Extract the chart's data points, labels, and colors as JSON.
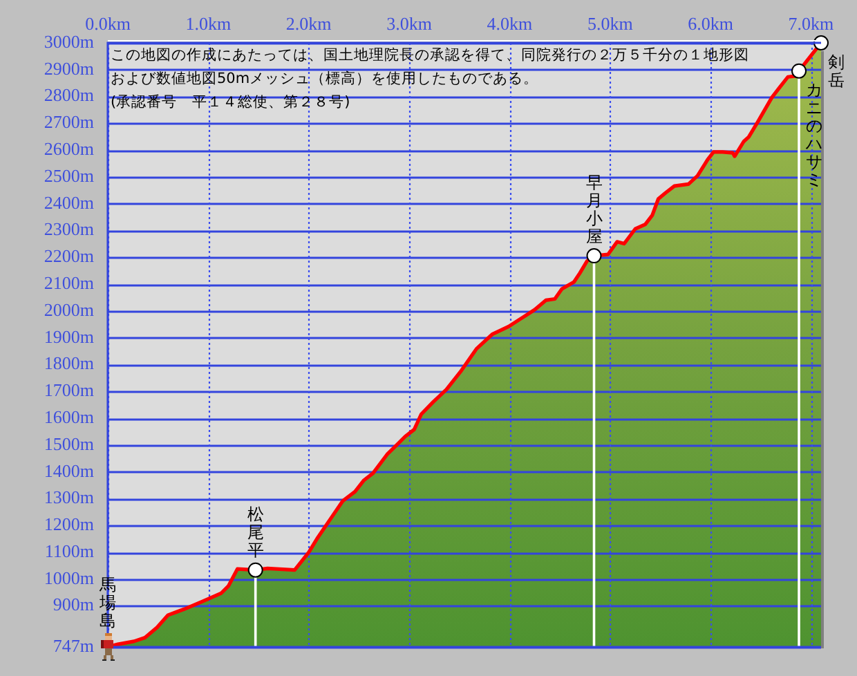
{
  "chart_data": {
    "type": "area",
    "x": [
      0,
      0.1,
      0.26,
      0.37,
      0.49,
      0.6,
      0.76,
      0.95,
      1.13,
      1.2,
      1.29,
      1.47,
      1.59,
      1.86,
      2.0,
      2.09,
      2.23,
      2.34,
      2.46,
      2.55,
      2.64,
      2.78,
      2.87,
      2.96,
      3.05,
      3.12,
      3.24,
      3.37,
      3.51,
      3.67,
      3.83,
      3.99,
      4.11,
      4.25,
      4.36,
      4.45,
      4.52,
      4.64,
      4.7,
      4.77,
      4.84,
      4.98,
      5.07,
      5.14,
      5.25,
      5.35,
      5.42,
      5.48,
      5.55,
      5.64,
      5.78,
      5.87,
      5.97,
      6.03,
      6.12,
      6.22,
      6.24,
      6.33,
      6.38,
      6.47,
      6.61,
      6.68,
      6.77,
      6.84,
      6.88,
      7.1
    ],
    "series": [
      {
        "color": "#76a23f",
        "values": [
          747,
          757,
          768,
          782,
          820,
          866,
          888,
          918,
          948,
          974,
          1038,
          1034,
          1040,
          1034,
          1100,
          1155,
          1232,
          1292,
          1326,
          1369,
          1395,
          1465,
          1498,
          1532,
          1558,
          1615,
          1661,
          1707,
          1773,
          1859,
          1914,
          1942,
          1971,
          2005,
          2040,
          2045,
          2082,
          2108,
          2142,
          2186,
          2206,
          2211,
          2258,
          2251,
          2306,
          2323,
          2357,
          2418,
          2440,
          2466,
          2473,
          2504,
          2564,
          2593,
          2593,
          2590,
          2577,
          2632,
          2649,
          2705,
          2796,
          2830,
          2873,
          2876,
          2895,
          3000
        ]
      }
    ],
    "xlim": [
      0,
      7.1
    ],
    "xticks": [
      {
        "value": 0,
        "label": "0.0km"
      },
      {
        "value": 1,
        "label": "1.0km"
      },
      {
        "value": 2,
        "label": "2.0km"
      },
      {
        "value": 3,
        "label": "3.0km"
      },
      {
        "value": 4,
        "label": "4.0km"
      },
      {
        "value": 5,
        "label": "5.0km"
      },
      {
        "value": 6,
        "label": "6.0km"
      },
      {
        "value": 7,
        "label": "7.0km"
      }
    ],
    "ylim": [
      747,
      3000
    ],
    "yticks": [
      {
        "value": 747,
        "label": "747m"
      },
      {
        "value": 900,
        "label": "900m"
      },
      {
        "value": 1000,
        "label": "1000m"
      },
      {
        "value": 1100,
        "label": "1100m"
      },
      {
        "value": 1200,
        "label": "1200m"
      },
      {
        "value": 1300,
        "label": "1300m"
      },
      {
        "value": 1400,
        "label": "1400m"
      },
      {
        "value": 1500,
        "label": "1500m"
      },
      {
        "value": 1600,
        "label": "1600m"
      },
      {
        "value": 1700,
        "label": "1700m"
      },
      {
        "value": 1800,
        "label": "1800m"
      },
      {
        "value": 1900,
        "label": "1900m"
      },
      {
        "value": 2000,
        "label": "2000m"
      },
      {
        "value": 2100,
        "label": "2100m"
      },
      {
        "value": 2200,
        "label": "2200m"
      },
      {
        "value": 2300,
        "label": "2300m"
      },
      {
        "value": 2400,
        "label": "2400m"
      },
      {
        "value": 2500,
        "label": "2500m"
      },
      {
        "value": 2600,
        "label": "2600m"
      },
      {
        "value": 2700,
        "label": "2700m"
      },
      {
        "value": 2800,
        "label": "2800m"
      },
      {
        "value": 2900,
        "label": "2900m"
      },
      {
        "value": 3000,
        "label": "3000m"
      }
    ],
    "grid": true,
    "ref_lines": [
      {
        "axis": "x",
        "value": 1.47,
        "label": "松尾平",
        "color": "#ffffff"
      },
      {
        "axis": "x",
        "value": 4.84,
        "label": "早月小屋",
        "color": "#ffffff"
      },
      {
        "axis": "x",
        "value": 6.88,
        "label": "カニのハサミ",
        "color": "#ffffff"
      }
    ],
    "annotations": [
      "この地図の作成にあたっては、国土地理院長の承認を得て、同院発行の２万５千分の１地形図",
      "および数値地図50mメッシュ（標高）を使用したものである。",
      "(承認番号　平１４総使、第２８号)",
      {
        "text": "馬場島",
        "x": 0,
        "y": 747
      },
      {
        "text": "剣岳",
        "x": 7.1,
        "y": 3000
      }
    ]
  }
}
